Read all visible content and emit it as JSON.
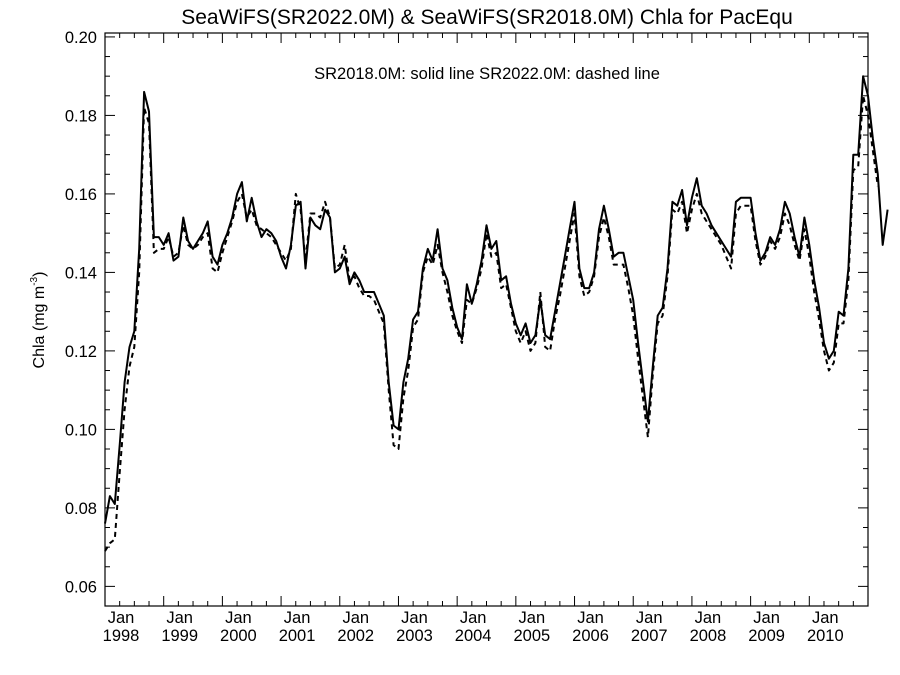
{
  "chart_data": {
    "type": "line",
    "title": "SeaWiFS(SR2022.0M) & SeaWiFS(SR2018.0M)  Chla for PacEqu",
    "annotation": "SR2018.0M: solid line   SR2022.0M: dashed line",
    "ylabel_main": "Chla (mg m",
    "ylabel_sup": "-3",
    "ylabel_close": ")",
    "xlabel": "",
    "ylim": [
      0.055,
      0.201
    ],
    "xlim": [
      1998.0,
      2011.0
    ],
    "grid": false,
    "legend": "none",
    "yticks": [
      "0.06",
      "0.08",
      "0.10",
      "0.12",
      "0.14",
      "0.16",
      "0.18",
      "0.20"
    ],
    "xticks": [
      {
        "month": "Jan",
        "year": "1998"
      },
      {
        "month": "Jan",
        "year": "1999"
      },
      {
        "month": "Jan",
        "year": "2000"
      },
      {
        "month": "Jan",
        "year": "2001"
      },
      {
        "month": "Jan",
        "year": "2002"
      },
      {
        "month": "Jan",
        "year": "2003"
      },
      {
        "month": "Jan",
        "year": "2004"
      },
      {
        "month": "Jan",
        "year": "2005"
      },
      {
        "month": "Jan",
        "year": "2006"
      },
      {
        "month": "Jan",
        "year": "2007"
      },
      {
        "month": "Jan",
        "year": "2008"
      },
      {
        "month": "Jan",
        "year": "2009"
      },
      {
        "month": "Jan",
        "year": "2010"
      }
    ],
    "series": [
      {
        "style": "solid",
        "values": [
          0.076,
          0.083,
          0.081,
          0.096,
          0.112,
          0.121,
          0.125,
          0.146,
          0.186,
          0.181,
          0.149,
          0.149,
          0.147,
          0.15,
          0.143,
          0.144,
          0.154,
          0.148,
          0.146,
          0.148,
          0.15,
          0.153,
          0.144,
          0.142,
          0.147,
          0.15,
          0.154,
          0.16,
          0.163,
          0.153,
          0.159,
          0.153,
          0.149,
          0.151,
          0.15,
          0.148,
          0.144,
          0.141,
          0.147,
          0.157,
          0.158,
          0.141,
          0.154,
          0.152,
          0.151,
          0.156,
          0.154,
          0.14,
          0.141,
          0.144,
          0.137,
          0.14,
          0.138,
          0.135,
          0.135,
          0.135,
          0.132,
          0.129,
          0.112,
          0.101,
          0.1,
          0.112,
          0.118,
          0.128,
          0.13,
          0.141,
          0.146,
          0.143,
          0.151,
          0.141,
          0.138,
          0.131,
          0.126,
          0.123,
          0.137,
          0.132,
          0.137,
          0.143,
          0.152,
          0.146,
          0.148,
          0.138,
          0.139,
          0.132,
          0.127,
          0.124,
          0.127,
          0.122,
          0.124,
          0.133,
          0.124,
          0.123,
          0.13,
          0.137,
          0.144,
          0.151,
          0.158,
          0.141,
          0.136,
          0.136,
          0.14,
          0.151,
          0.157,
          0.151,
          0.144,
          0.145,
          0.145,
          0.139,
          0.133,
          0.122,
          0.112,
          0.102,
          0.116,
          0.129,
          0.131,
          0.141,
          0.158,
          0.157,
          0.161,
          0.152,
          0.159,
          0.164,
          0.157,
          0.155,
          0.152,
          0.15,
          0.148,
          0.146,
          0.144,
          0.158,
          0.159,
          0.159,
          0.159,
          0.15,
          0.143,
          0.145,
          0.149,
          0.147,
          0.151,
          0.158,
          0.155,
          0.149,
          0.144,
          0.154,
          0.147,
          0.138,
          0.131,
          0.122,
          0.118,
          0.12,
          0.13,
          0.129,
          0.141,
          0.17,
          0.17,
          0.19,
          0.185,
          0.174,
          0.165,
          0.147,
          0.156
        ]
      },
      {
        "style": "dashed",
        "values": [
          0.069,
          0.071,
          0.072,
          0.089,
          0.105,
          0.116,
          0.121,
          0.14,
          0.182,
          0.178,
          0.145,
          0.146,
          0.146,
          0.149,
          0.144,
          0.145,
          0.152,
          0.147,
          0.146,
          0.147,
          0.149,
          0.15,
          0.141,
          0.14,
          0.145,
          0.149,
          0.153,
          0.158,
          0.16,
          0.154,
          0.156,
          0.152,
          0.151,
          0.15,
          0.149,
          0.147,
          0.145,
          0.143,
          0.146,
          0.16,
          0.156,
          0.143,
          0.155,
          0.155,
          0.154,
          0.158,
          0.154,
          0.141,
          0.142,
          0.147,
          0.138,
          0.139,
          0.136,
          0.134,
          0.134,
          0.133,
          0.13,
          0.127,
          0.11,
          0.096,
          0.095,
          0.108,
          0.115,
          0.126,
          0.128,
          0.14,
          0.144,
          0.142,
          0.147,
          0.14,
          0.135,
          0.129,
          0.125,
          0.122,
          0.133,
          0.132,
          0.136,
          0.141,
          0.15,
          0.144,
          0.145,
          0.136,
          0.137,
          0.131,
          0.125,
          0.122,
          0.125,
          0.12,
          0.122,
          0.135,
          0.121,
          0.12,
          0.128,
          0.134,
          0.141,
          0.148,
          0.155,
          0.139,
          0.134,
          0.135,
          0.139,
          0.149,
          0.154,
          0.149,
          0.142,
          0.142,
          0.142,
          0.136,
          0.129,
          0.118,
          0.108,
          0.098,
          0.114,
          0.127,
          0.129,
          0.139,
          0.156,
          0.155,
          0.158,
          0.15,
          0.156,
          0.16,
          0.155,
          0.153,
          0.151,
          0.149,
          0.147,
          0.144,
          0.141,
          0.155,
          0.157,
          0.157,
          0.157,
          0.148,
          0.142,
          0.144,
          0.148,
          0.146,
          0.149,
          0.155,
          0.152,
          0.147,
          0.143,
          0.151,
          0.144,
          0.135,
          0.128,
          0.12,
          0.115,
          0.117,
          0.127,
          0.127,
          0.138,
          0.166,
          0.167,
          0.185,
          0.18,
          0.171,
          0.162
        ]
      }
    ]
  }
}
